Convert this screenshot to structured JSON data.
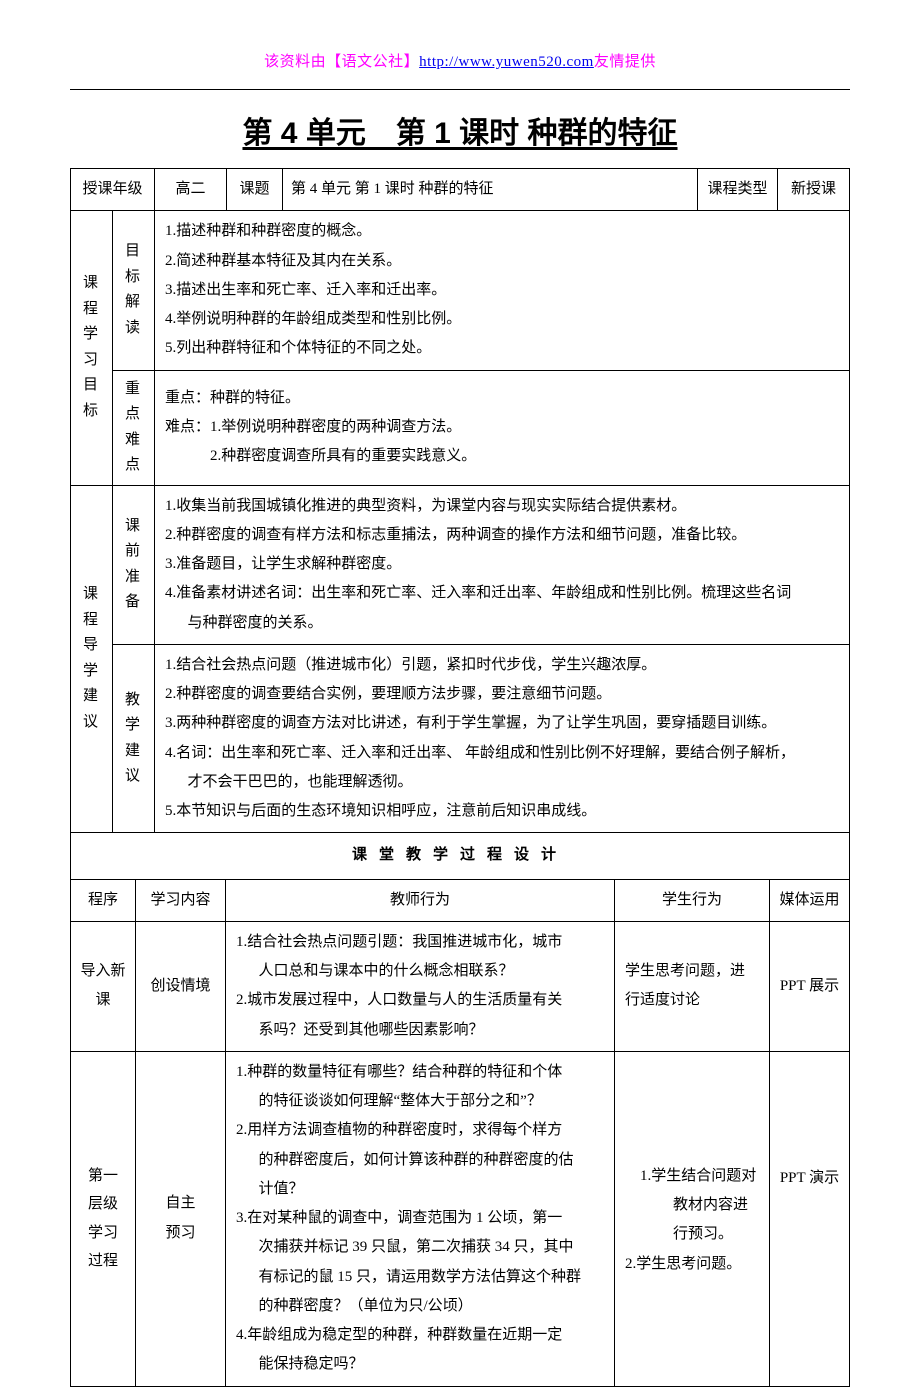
{
  "header": {
    "prefix": "该资料由【语文公社】",
    "link": "http://www.yuwen520.com",
    "suffix": "友情提供"
  },
  "title": "第 4 单元　第 1 课时  种群的特征",
  "row_info": {
    "grade_label": "授课年级",
    "grade_value": "高二",
    "topic_label": "课题",
    "topic_value": "第 4 单元  第 1 课时  种群的特征",
    "type_label": "课程类型",
    "type_value": "新授课"
  },
  "goals": {
    "block_label": "课程学习目标",
    "c1_label": "目标解读",
    "c1_lines": [
      "1.描述种群和种群密度的概念。",
      "2.简述种群基本特征及其内在关系。",
      "3.描述出生率和死亡率、迁入率和迁出率。",
      "4.举例说明种群的年龄组成类型和性别比例。",
      "5.列出种群特征和个体特征的不同之处。"
    ],
    "c2_label": "重点难点",
    "c2_lines": [
      "重点：种群的特征。",
      "难点：1.举例说明种群密度的两种调查方法。",
      "　　　2.种群密度调查所具有的重要实践意义。"
    ]
  },
  "guide": {
    "block_label": "课程导学建议",
    "c1_label": "课前准备",
    "c1_lines": [
      "1.收集当前我国城镇化推进的典型资料，为课堂内容与现实实际结合提供素材。",
      "2.种群密度的调查有样方法和标志重捕法，两种调查的操作方法和细节问题，准备比较。",
      "3.准备题目，让学生求解种群密度。",
      "4.准备素材讲述名词：出生率和死亡率、迁入率和迁出率、年龄组成和性别比例。梳理这些名词",
      "与种群密度的关系。"
    ],
    "c2_label": "教学建议",
    "c2_lines": [
      "1.结合社会热点问题（推进城市化）引题，紧扣时代步伐，学生兴趣浓厚。",
      "2.种群密度的调查要结合实例，要理顺方法步骤，要注意细节问题。",
      "3.两种种群密度的调查方法对比讲述，有利于学生掌握，为了让学生巩固，要穿插题目训练。",
      "4.名词：出生率和死亡率、迁入率和迁出率、 年龄组成和性别比例不好理解，要结合例子解析，",
      "才不会干巴巴的，也能理解透彻。",
      "5.本节知识与后面的生态环境知识相呼应，注意前后知识串成线。"
    ]
  },
  "section_header": "课堂教学过程设计",
  "proc_head": {
    "c1": "程序",
    "c2": "学习内容",
    "c3": "教师行为",
    "c4": "学生行为",
    "c5": "媒体运用"
  },
  "proc_rows": [
    {
      "c1": "导入新课",
      "c2": "创设情境",
      "c3_lines": [
        "1.结合社会热点问题引题：我国推进城市化，城市",
        "人口总和与课本中的什么概念相联系？",
        "2.城市发展过程中，人口数量与人的生活质量有关",
        "系吗？还受到其他哪些因素影响？"
      ],
      "c4": "学生思考问题，进行适度讨论",
      "c5": "PPT 展示"
    },
    {
      "c1": "第一层级学习过程",
      "c2": "自主预习",
      "c3_lines": [
        "1.种群的数量特征有哪些？结合种群的特征和个体",
        "的特征谈谈如何理解“整体大于部分之和”？",
        "2.用样方法调查植物的种群密度时，求得每个样方",
        "的种群密度后，如何计算该种群的种群密度的估",
        "计值？",
        "3.在对某种鼠的调查中，调查范围为 1 公顷，第一",
        "次捕获并标记 39 只鼠，第二次捕获 34 只，其中",
        "有标记的鼠 15 只，请运用数学方法估算这个种群",
        "的种群密度？（单位为只/公顷）",
        "4.年龄组成为稳定型的种群，种群数量在近期一定",
        "能保持稳定吗？"
      ],
      "c4_lines": [
        "1.学生结合问题对教材内容进行预习。",
        "2.学生思考问题。"
      ],
      "c5": "PPT 演示"
    }
  ]
}
